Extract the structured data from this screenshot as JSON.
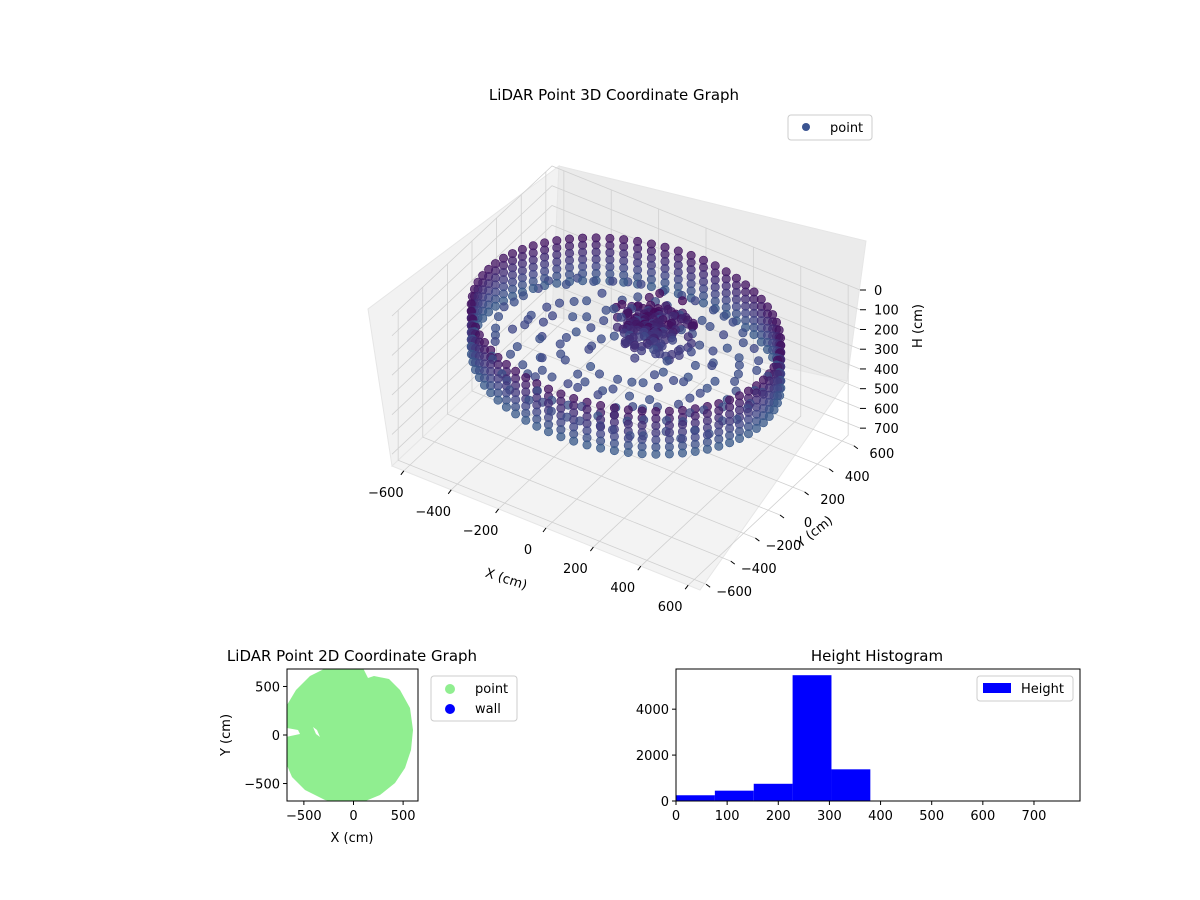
{
  "chart_data": [
    {
      "type": "scatter",
      "projection": "3d",
      "title": "LiDAR Point 3D Coordinate Graph",
      "xlabel": "X (cm)",
      "ylabel": "Y (cm)",
      "zlabel": "H (cm)",
      "x_ticks": [
        -600,
        -400,
        -200,
        0,
        200,
        400,
        600
      ],
      "y_ticks": [
        -600,
        -400,
        -200,
        0,
        200,
        400,
        600
      ],
      "z_ticks": [
        0,
        100,
        200,
        300,
        400,
        500,
        600,
        700
      ],
      "z_inverted": true,
      "grid": true,
      "legend": {
        "placement": "top-right",
        "entries": [
          {
            "label": "point",
            "color": "#3b5491"
          }
        ]
      },
      "colormap": "viridis",
      "description_shape": "ring-shaped wall of points around the outer boundary with a raised cluster near the center"
    },
    {
      "type": "scatter",
      "title": "LiDAR Point 2D Coordinate Graph",
      "xlabel": "X (cm)",
      "ylabel": "Y (cm)",
      "x_ticks": [
        -500,
        0,
        500
      ],
      "y_ticks": [
        500,
        0,
        -500
      ],
      "xlim": [
        -670,
        650
      ],
      "ylim": [
        -680,
        680
      ],
      "legend": {
        "placement": "outside-right",
        "entries": [
          {
            "label": "point",
            "color": "#90ee90"
          },
          {
            "label": "wall",
            "color": "#0000ff"
          }
        ]
      }
    },
    {
      "type": "bar",
      "subtype": "histogram",
      "title": "Height Histogram",
      "x_ticks": [
        0,
        100,
        200,
        300,
        400,
        500,
        600,
        700
      ],
      "y_ticks": [
        0,
        2000,
        4000
      ],
      "xlim": [
        0,
        790
      ],
      "ylim": [
        0,
        5750
      ],
      "bins": [
        {
          "x0": 0,
          "x1": 76,
          "value": 250
        },
        {
          "x0": 76,
          "x1": 152,
          "value": 450
        },
        {
          "x0": 152,
          "x1": 228,
          "value": 750
        },
        {
          "x0": 228,
          "x1": 304,
          "value": 5480
        },
        {
          "x0": 304,
          "x1": 380,
          "value": 1380
        },
        {
          "x0": 380,
          "x1": 456,
          "value": 0
        },
        {
          "x0": 456,
          "x1": 532,
          "value": 0
        },
        {
          "x0": 532,
          "x1": 608,
          "value": 0
        },
        {
          "x0": 608,
          "x1": 684,
          "value": 0
        },
        {
          "x0": 684,
          "x1": 760,
          "value": 0
        }
      ],
      "color": "#0000ff",
      "legend": {
        "placement": "top-right",
        "entries": [
          {
            "label": "Height",
            "color": "#0000ff"
          }
        ]
      }
    }
  ]
}
